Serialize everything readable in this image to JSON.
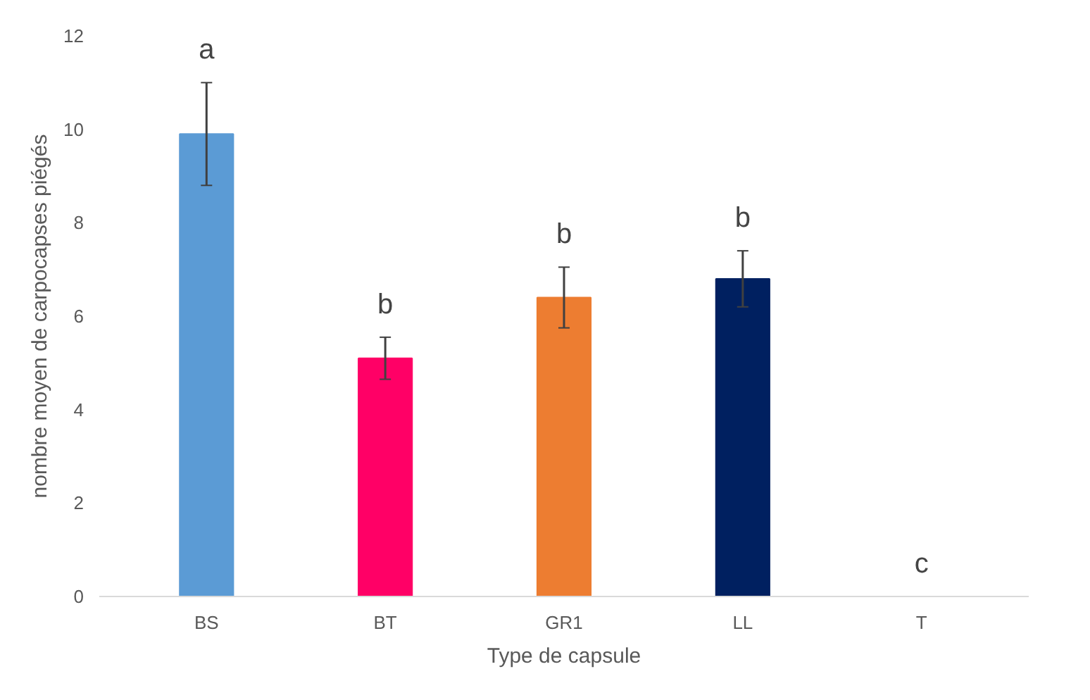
{
  "chart_data": {
    "type": "bar",
    "xlabel": "Type de capsule",
    "ylabel": "nombre moyen de carpocapses piégés",
    "categories": [
      "BS",
      "BT",
      "GR1",
      "LL",
      "T"
    ],
    "values": [
      9.9,
      5.1,
      6.4,
      6.8,
      0
    ],
    "colors": [
      "#5b9bd5",
      "#ff0066",
      "#ed7d31",
      "#002060",
      "#7f7f7f"
    ],
    "errors": [
      [
        8.8,
        11.0
      ],
      [
        4.65,
        5.55
      ],
      [
        5.75,
        7.05
      ],
      [
        6.2,
        7.4
      ],
      null
    ],
    "ylim": [
      0,
      12
    ],
    "yticks": [
      0,
      2,
      4,
      6,
      8,
      10,
      12
    ],
    "grid": false,
    "annotations": [
      "a",
      "b",
      "b",
      "b",
      "c"
    ]
  }
}
